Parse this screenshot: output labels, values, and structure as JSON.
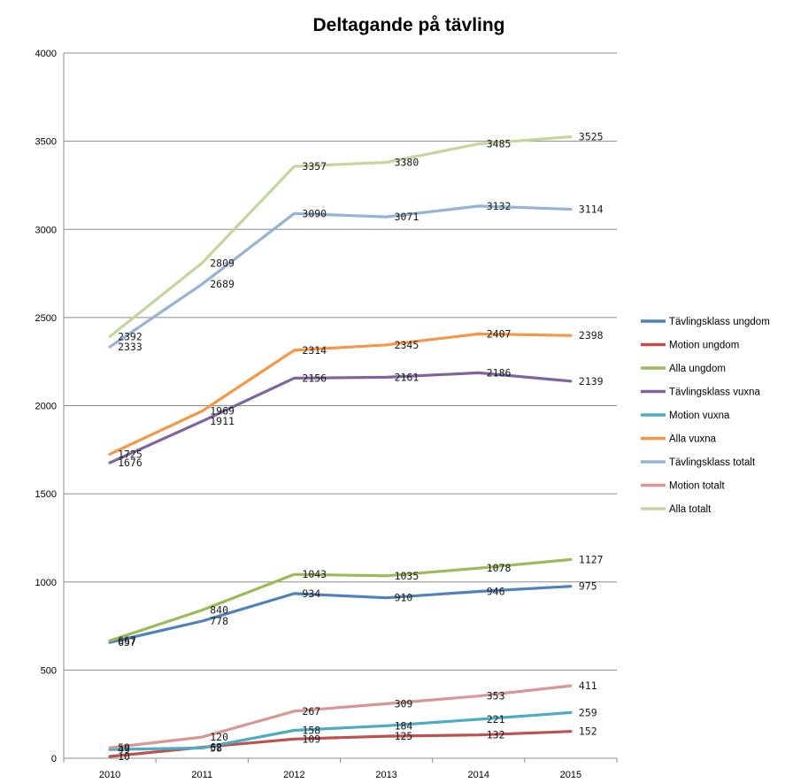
{
  "chart_data": {
    "type": "line",
    "title": "Deltagande på tävling",
    "xlabel": "",
    "ylabel": "",
    "categories": [
      "2010",
      "2011",
      "2012",
      "2013",
      "2014",
      "2015"
    ],
    "ylim": [
      0,
      4000
    ],
    "yticks": [
      0,
      500,
      1000,
      1500,
      2000,
      2500,
      3000,
      3500,
      4000
    ],
    "grid": true,
    "legend_position": "right",
    "series": [
      {
        "name": "Tävlingsklass ungdom",
        "color": "#4f81bd",
        "values": [
          657,
          778,
          934,
          910,
          946,
          975
        ]
      },
      {
        "name": "Motion ungdom",
        "color": "#c0504d",
        "values": [
          10,
          62,
          109,
          125,
          132,
          152
        ]
      },
      {
        "name": "Alla ungdom",
        "color": "#9bbb59",
        "values": [
          667,
          840,
          1043,
          1035,
          1078,
          1127
        ]
      },
      {
        "name": "Tävlingsklass vuxna",
        "color": "#8064a2",
        "values": [
          1676,
          1911,
          2156,
          2161,
          2186,
          2139
        ]
      },
      {
        "name": "Motion vuxna",
        "color": "#4bacc6",
        "values": [
          49,
          58,
          158,
          184,
          221,
          259
        ]
      },
      {
        "name": "Alla vuxna",
        "color": "#f79646",
        "values": [
          1725,
          1969,
          2314,
          2345,
          2407,
          2398
        ]
      },
      {
        "name": "Tävlingsklass totalt",
        "color": "#95b3d7",
        "values": [
          2333,
          2689,
          3090,
          3071,
          3132,
          3114
        ]
      },
      {
        "name": "Motion totalt",
        "color": "#d99694",
        "values": [
          59,
          120,
          267,
          309,
          353,
          411
        ]
      },
      {
        "name": "Alla totalt",
        "color": "#c3d69b",
        "values": [
          2392,
          2809,
          3357,
          3380,
          3485,
          3525
        ]
      }
    ]
  }
}
